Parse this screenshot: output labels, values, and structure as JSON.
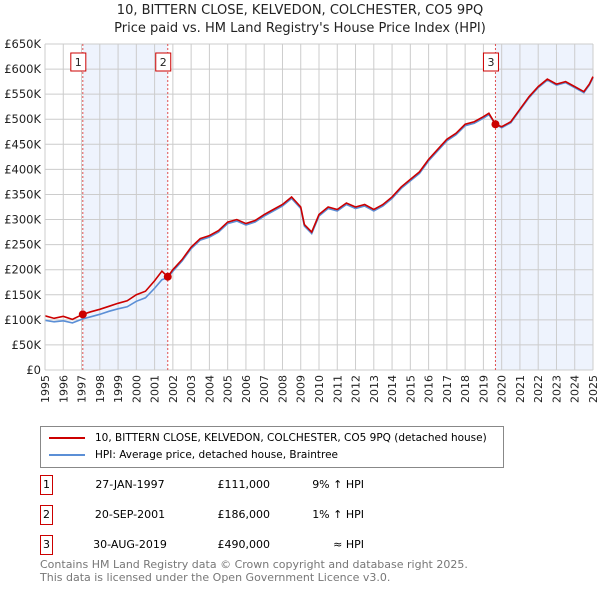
{
  "chart_data": {
    "type": "line",
    "title": "10, BITTERN CLOSE, KELVEDON, COLCHESTER, CO5 9PQ",
    "subtitle": "Price paid vs. HM Land Registry's House Price Index (HPI)",
    "xlim": [
      1995,
      2025
    ],
    "ylim": [
      0,
      650000
    ],
    "x_ticks": [
      "1995",
      "1996",
      "1997",
      "1998",
      "1999",
      "2000",
      "2001",
      "2002",
      "2003",
      "2004",
      "2005",
      "2006",
      "2007",
      "2008",
      "2009",
      "2010",
      "2011",
      "2012",
      "2013",
      "2014",
      "2015",
      "2016",
      "2017",
      "2018",
      "2019",
      "2020",
      "2021",
      "2022",
      "2023",
      "2024",
      "2025"
    ],
    "y_ticks": [
      "£0",
      "£50K",
      "£100K",
      "£150K",
      "£200K",
      "£250K",
      "£300K",
      "£350K",
      "£400K",
      "£450K",
      "£500K",
      "£550K",
      "£600K",
      "£650K"
    ],
    "grid": true,
    "series": [
      {
        "name": "10, BITTERN CLOSE, KELVEDON, COLCHESTER, CO5 9PQ (detached house)",
        "color": "#cc0000",
        "x": [
          1995,
          1995.5,
          1996,
          1996.5,
          1997.07,
          1997.5,
          1998,
          1998.5,
          1999,
          1999.5,
          2000,
          2000.5,
          2001,
          2001.4,
          2001.72,
          2002,
          2002.5,
          2003,
          2003.5,
          2004,
          2004.5,
          2005,
          2005.5,
          2006,
          2006.5,
          2007,
          2007.5,
          2008,
          2008.5,
          2009,
          2009.2,
          2009.6,
          2010,
          2010.5,
          2011,
          2011.5,
          2012,
          2012.5,
          2013,
          2013.5,
          2014,
          2014.5,
          2015,
          2015.5,
          2016,
          2016.5,
          2017,
          2017.5,
          2018,
          2018.5,
          2019,
          2019.3,
          2019.66,
          2020,
          2020.5,
          2021,
          2021.5,
          2022,
          2022.5,
          2023,
          2023.5,
          2024,
          2024.5,
          2024.8,
          2025
        ],
        "y": [
          108000,
          103000,
          107000,
          101000,
          111000,
          116000,
          121000,
          127000,
          133000,
          138000,
          150000,
          157000,
          178000,
          197000,
          186000,
          200000,
          220000,
          245000,
          262000,
          268000,
          278000,
          295000,
          300000,
          292000,
          298000,
          310000,
          320000,
          330000,
          345000,
          325000,
          290000,
          275000,
          310000,
          325000,
          320000,
          333000,
          325000,
          330000,
          320000,
          330000,
          345000,
          365000,
          380000,
          395000,
          420000,
          440000,
          460000,
          472000,
          490000,
          495000,
          505000,
          512000,
          490000,
          485000,
          495000,
          520000,
          545000,
          565000,
          580000,
          570000,
          575000,
          565000,
          555000,
          570000,
          585000
        ]
      },
      {
        "name": "HPI: Average price, detached house, Braintree",
        "color": "#5b8fd6",
        "x": [
          1995,
          1995.5,
          1996,
          1996.5,
          1997.07,
          1997.5,
          1998,
          1998.5,
          1999,
          1999.5,
          2000,
          2000.5,
          2001,
          2001.4,
          2001.72,
          2002,
          2002.5,
          2003,
          2003.5,
          2004,
          2004.5,
          2005,
          2005.5,
          2006,
          2006.5,
          2007,
          2007.5,
          2008,
          2008.5,
          2009,
          2009.2,
          2009.6,
          2010,
          2010.5,
          2011,
          2011.5,
          2012,
          2012.5,
          2013,
          2013.5,
          2014,
          2014.5,
          2015,
          2015.5,
          2016,
          2016.5,
          2017,
          2017.5,
          2018,
          2018.5,
          2019,
          2019.3,
          2019.66,
          2020,
          2020.5,
          2021,
          2021.5,
          2022,
          2022.5,
          2023,
          2023.5,
          2024,
          2024.5,
          2024.8,
          2025
        ],
        "y": [
          99000,
          96000,
          98000,
          94000,
          102000,
          106000,
          111000,
          117000,
          122000,
          126000,
          137000,
          144000,
          163000,
          180000,
          184000,
          197000,
          217000,
          242000,
          259000,
          265000,
          275000,
          292000,
          297000,
          289000,
          295000,
          307000,
          317000,
          327000,
          342000,
          322000,
          287000,
          272000,
          307000,
          322000,
          317000,
          330000,
          322000,
          327000,
          317000,
          327000,
          342000,
          362000,
          377000,
          392000,
          417000,
          437000,
          457000,
          469000,
          487000,
          492000,
          502000,
          509000,
          490000,
          483000,
          493000,
          518000,
          543000,
          563000,
          578000,
          568000,
          573000,
          563000,
          553000,
          568000,
          583000
        ]
      }
    ],
    "sales": [
      {
        "label": "1",
        "x": 1997.07,
        "y": 111000,
        "date": "27-JAN-1997",
        "price": "£111,000",
        "hpi": "9% ↑ HPI"
      },
      {
        "label": "2",
        "x": 2001.72,
        "y": 186000,
        "date": "20-SEP-2001",
        "price": "£186,000",
        "hpi": "1% ↑ HPI"
      },
      {
        "label": "3",
        "x": 2019.66,
        "y": 490000,
        "date": "30-AUG-2019",
        "price": "£490,000",
        "hpi": "≈ HPI"
      }
    ],
    "shaded_ranges": [
      [
        1997.07,
        2001.72
      ],
      [
        2019.66,
        2025
      ]
    ]
  },
  "footer": {
    "line1": "Contains HM Land Registry data © Crown copyright and database right 2025.",
    "line2": "This data is licensed under the Open Government Licence v3.0."
  }
}
